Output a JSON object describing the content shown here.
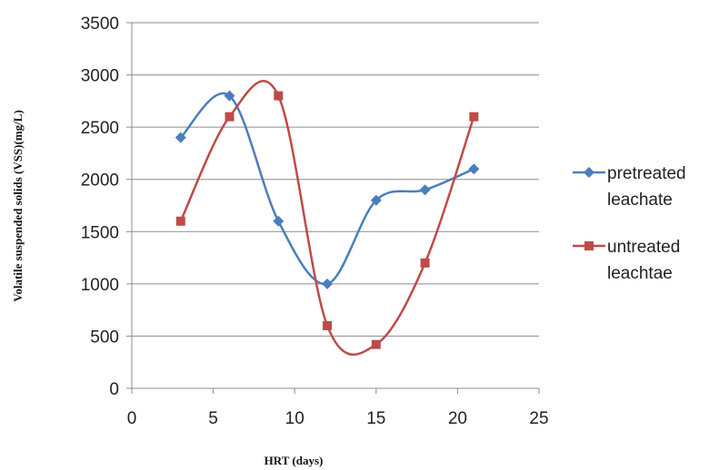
{
  "chart_data": {
    "type": "line",
    "xlabel": "HRT (days)",
    "ylabel": "Volatile suspended solids (VSS)(mg/L)",
    "xlim": [
      0,
      25
    ],
    "ylim": [
      0,
      3500
    ],
    "xticks": [
      0,
      5,
      10,
      15,
      20,
      25
    ],
    "yticks": [
      0,
      500,
      1000,
      1500,
      2000,
      2500,
      3000,
      3500
    ],
    "grid": "horizontal",
    "smooth": true,
    "legend_position": "right",
    "series": [
      {
        "name": "pretreated leachate",
        "legend_lines": [
          "pretreated",
          "leachate"
        ],
        "color": "#4a7ebb",
        "marker": "diamond",
        "x": [
          3,
          6,
          9,
          12,
          15,
          18,
          21
        ],
        "y": [
          2400,
          2800,
          1600,
          1000,
          1800,
          1900,
          2100
        ]
      },
      {
        "name": "untreated leachtae",
        "legend_lines": [
          "untreated",
          "leachtae"
        ],
        "color": "#be4b48",
        "marker": "square",
        "x": [
          3,
          6,
          9,
          12,
          15,
          18,
          21
        ],
        "y": [
          1600,
          2600,
          2800,
          600,
          420,
          1200,
          2600
        ]
      }
    ]
  }
}
